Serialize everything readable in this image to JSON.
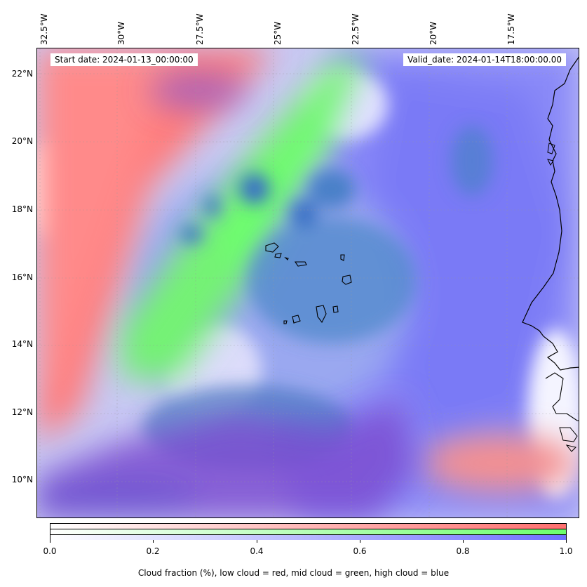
{
  "map": {
    "start_date": "Start date: 2024-01-13_00:00:00",
    "valid_date": "Valid_date: 2024-01-14T18:00:00.00",
    "lon_labels": [
      "32.5°W",
      "30°W",
      "27.5°W",
      "25°W",
      "22.5°W",
      "20°W",
      "17.5°W"
    ],
    "lat_labels": [
      "22°N",
      "20°N",
      "18°N",
      "16°N",
      "14°N",
      "12°N",
      "10°N"
    ]
  },
  "colorbar": {
    "ticks": [
      "0.0",
      "0.2",
      "0.4",
      "0.6",
      "0.8",
      "1.0"
    ],
    "label": "Cloud fraction (%), low cloud = red, mid cloud = green, high cloud = blue",
    "colors": {
      "low": "#ff6f6f",
      "mid": "#6cff6c",
      "high": "#7070ff"
    }
  }
}
